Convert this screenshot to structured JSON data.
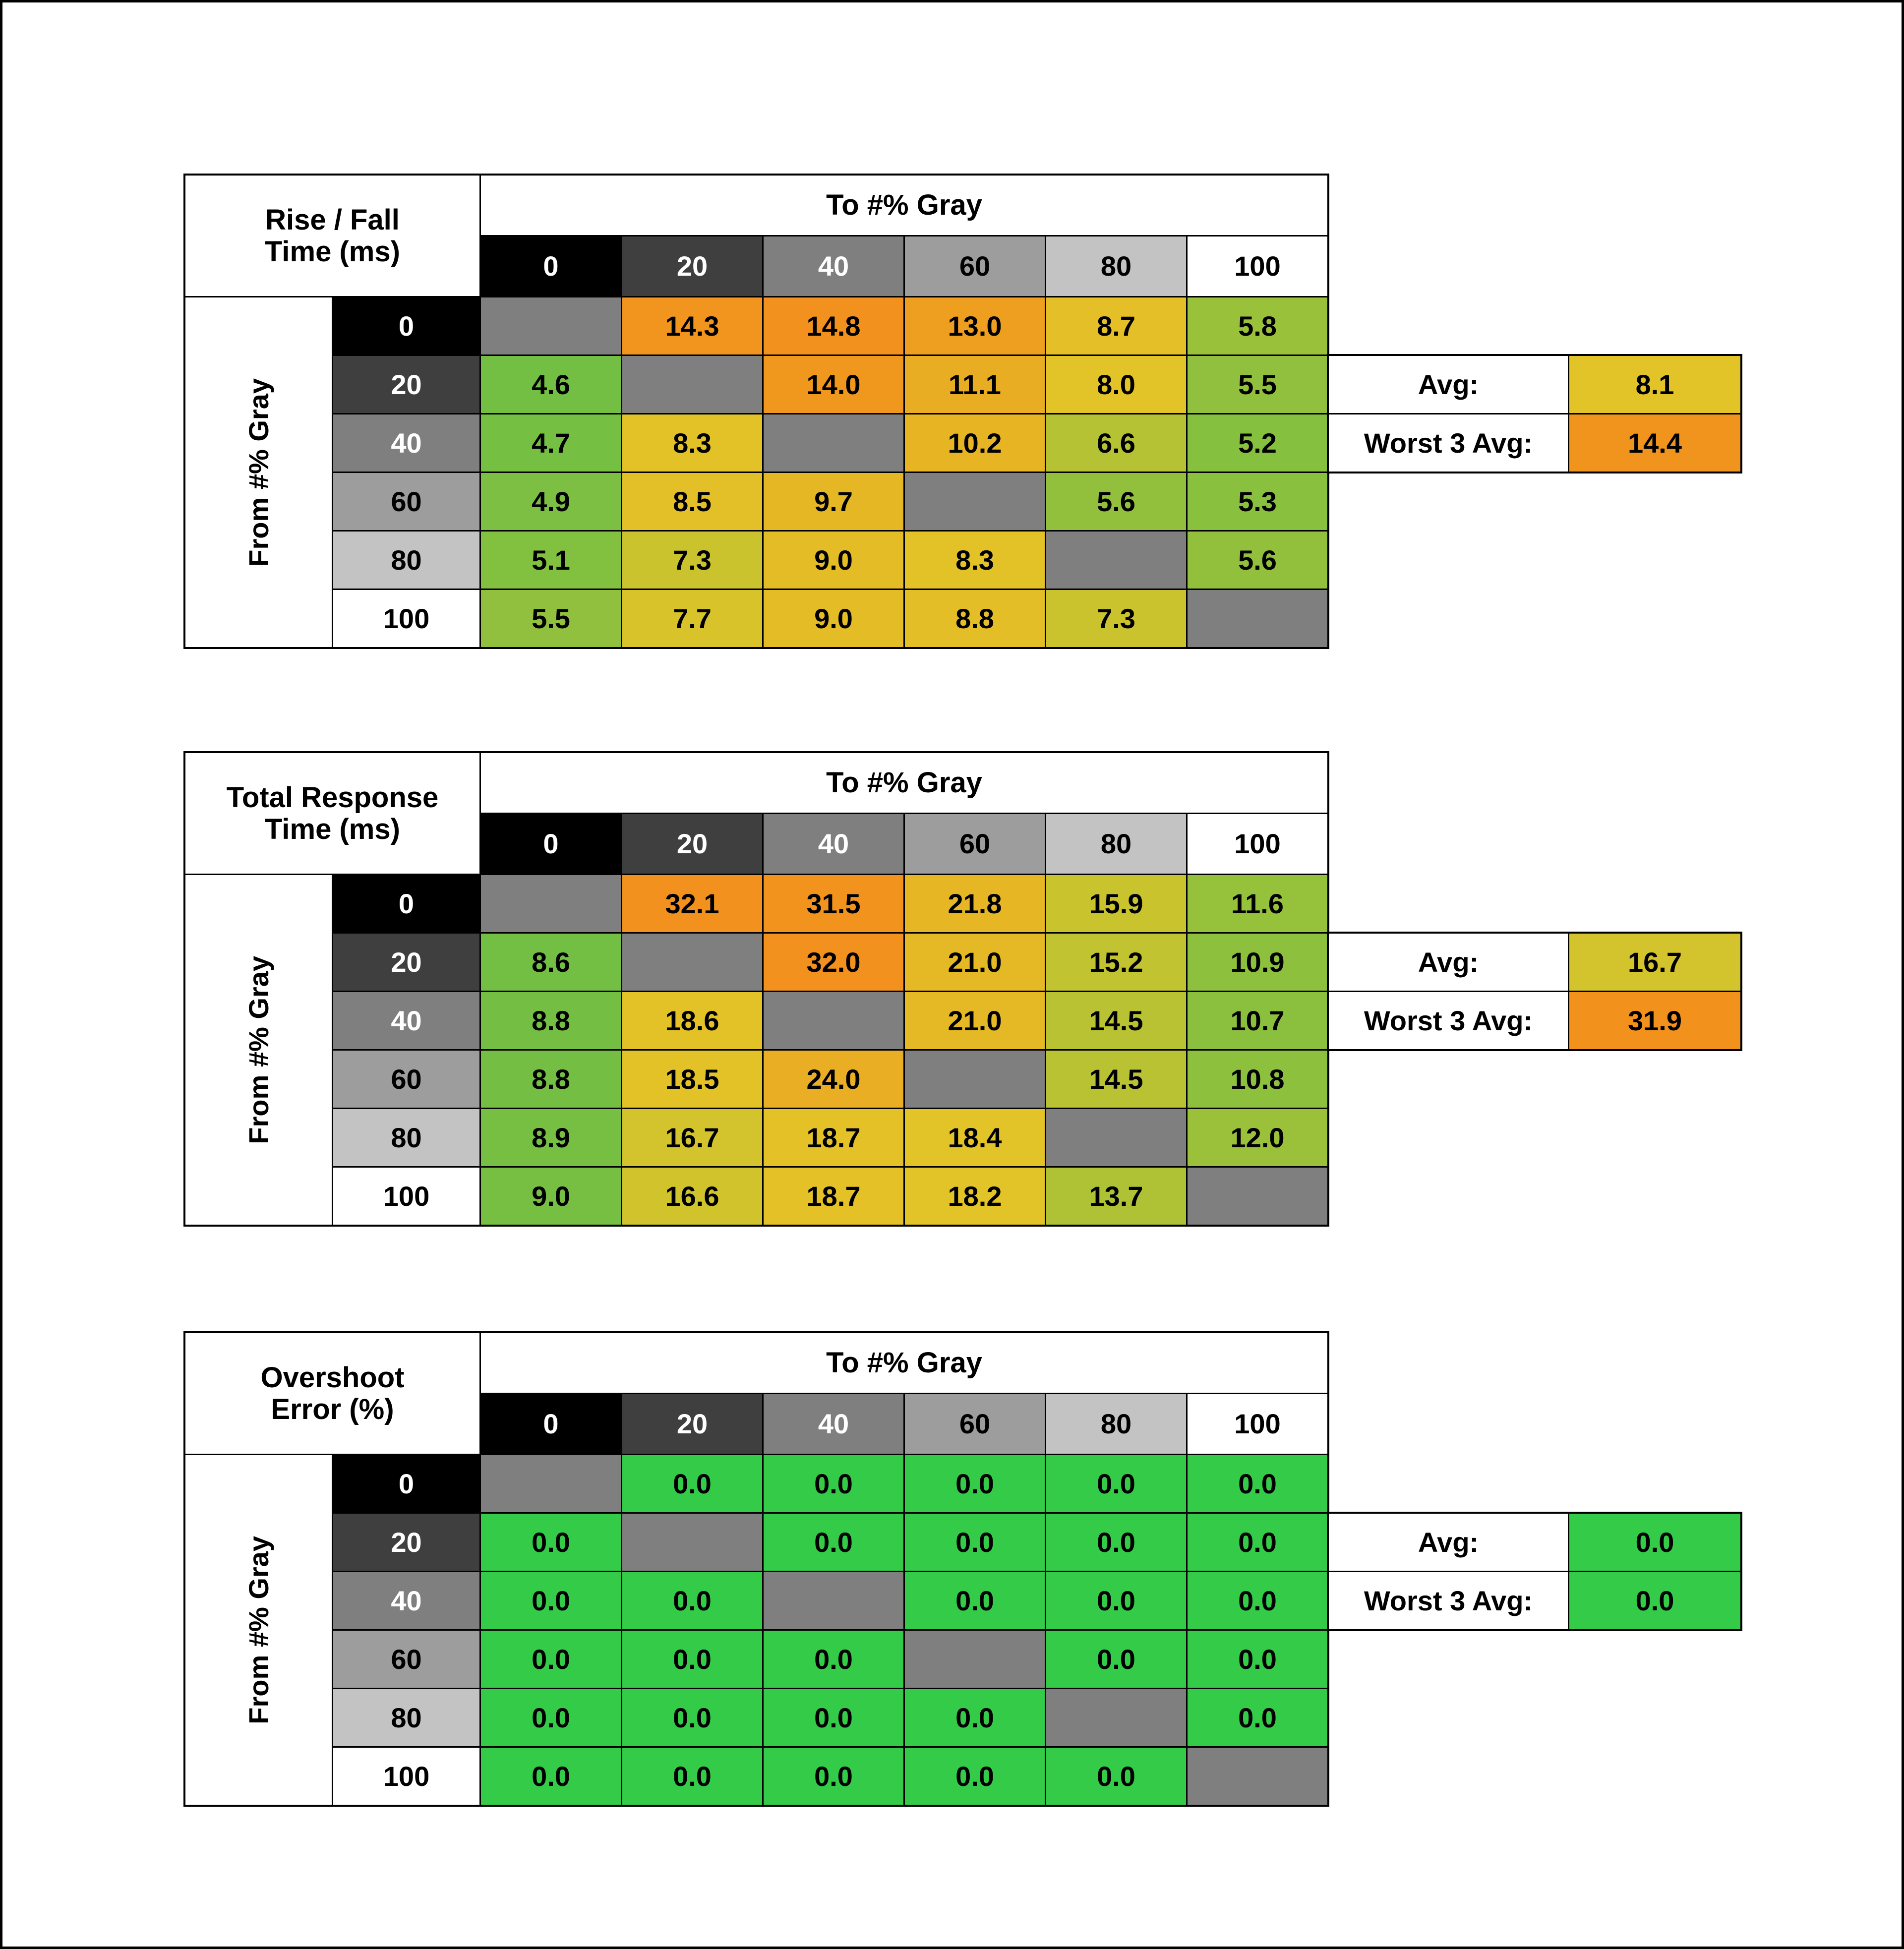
{
  "palette": {
    "page_border": "#000000",
    "header_blue": "#dbe5f1",
    "diagonal_gray": "#7f7f7f",
    "gray_levels": [
      "#000000",
      "#3f3f3f",
      "#7f7f7f",
      "#9d9d9d",
      "#c3c3c3",
      "#ffffff"
    ],
    "gray_text": [
      "#ffffff",
      "#ffffff",
      "#ffffff",
      "#000000",
      "#000000",
      "#000000"
    ]
  },
  "labels": {
    "to": "To #% Gray",
    "from": "From #% Gray",
    "avg": "Avg:",
    "worst3": "Worst 3 Avg:"
  },
  "chart_data": [
    {
      "type": "heatmap",
      "title": "Rise / Fall Time (ms)",
      "title_line1": "Rise / Fall",
      "title_line2": "Time (ms)",
      "x_label": "To #% Gray",
      "y_label": "From #% Gray",
      "levels": [
        "0",
        "20",
        "40",
        "60",
        "80",
        "100"
      ],
      "matrix": [
        [
          null,
          14.3,
          14.8,
          13.0,
          8.7,
          5.8
        ],
        [
          4.6,
          null,
          14.0,
          11.1,
          8.0,
          5.5
        ],
        [
          4.7,
          8.3,
          null,
          10.2,
          6.6,
          5.2
        ],
        [
          4.9,
          8.5,
          9.7,
          null,
          5.6,
          5.3
        ],
        [
          5.1,
          7.3,
          9.0,
          8.3,
          null,
          5.6
        ],
        [
          5.5,
          7.7,
          9.0,
          8.8,
          7.3,
          null
        ]
      ],
      "avg": 8.1,
      "worst3_avg": 14.4,
      "scale": {
        "min": 4.6,
        "mid": 8.0,
        "max": 14.8
      },
      "colors": {
        "low": "#72bf44",
        "mid": "#e2c428",
        "high": "#f2911d"
      }
    },
    {
      "type": "heatmap",
      "title": "Total Response Time (ms)",
      "title_line1": "Total Response",
      "title_line2": "Time (ms)",
      "x_label": "To #% Gray",
      "y_label": "From #% Gray",
      "levels": [
        "0",
        "20",
        "40",
        "60",
        "80",
        "100"
      ],
      "matrix": [
        [
          null,
          32.1,
          31.5,
          21.8,
          15.9,
          11.6
        ],
        [
          8.6,
          null,
          32.0,
          21.0,
          15.2,
          10.9
        ],
        [
          8.8,
          18.6,
          null,
          21.0,
          14.5,
          10.7
        ],
        [
          8.8,
          18.5,
          24.0,
          null,
          14.5,
          10.8
        ],
        [
          8.9,
          16.7,
          18.7,
          18.4,
          null,
          12.0
        ],
        [
          9.0,
          16.6,
          18.7,
          18.2,
          13.7,
          null
        ]
      ],
      "avg": 16.7,
      "worst3_avg": 31.9,
      "scale": {
        "min": 8.6,
        "mid": 18.0,
        "max": 32.1
      },
      "colors": {
        "low": "#72bf44",
        "mid": "#e2c428",
        "high": "#f2911d"
      }
    },
    {
      "type": "heatmap",
      "title": "Overshoot Error (%)",
      "title_line1": "Overshoot",
      "title_line2": "Error (%)",
      "x_label": "To #% Gray",
      "y_label": "From #% Gray",
      "levels": [
        "0",
        "20",
        "40",
        "60",
        "80",
        "100"
      ],
      "matrix": [
        [
          null,
          0.0,
          0.0,
          0.0,
          0.0,
          0.0
        ],
        [
          0.0,
          null,
          0.0,
          0.0,
          0.0,
          0.0
        ],
        [
          0.0,
          0.0,
          null,
          0.0,
          0.0,
          0.0
        ],
        [
          0.0,
          0.0,
          0.0,
          null,
          0.0,
          0.0
        ],
        [
          0.0,
          0.0,
          0.0,
          0.0,
          null,
          0.0
        ],
        [
          0.0,
          0.0,
          0.0,
          0.0,
          0.0,
          null
        ]
      ],
      "avg": 0.0,
      "worst3_avg": 0.0,
      "scale": {
        "min": 0,
        "mid": 0,
        "max": 0
      },
      "colors": {
        "low": "#33cb47",
        "mid": "#33cb47",
        "high": "#33cb47"
      }
    }
  ]
}
